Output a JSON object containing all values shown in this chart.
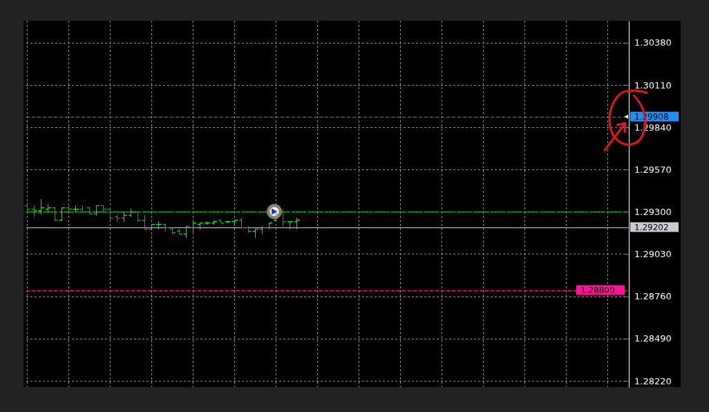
{
  "chart_data": {
    "type": "candlestick",
    "categories": [
      null,
      null,
      null,
      null,
      null,
      null,
      null,
      null,
      null,
      null,
      null,
      null,
      null,
      null,
      null,
      null,
      null,
      null,
      null,
      null,
      null,
      null,
      null,
      null,
      null,
      null,
      null,
      null,
      null,
      null,
      null,
      null,
      null,
      null,
      null,
      null,
      null,
      null,
      null,
      null,
      null,
      null,
      null,
      null,
      null,
      null,
      null,
      null,
      null,
      null,
      null,
      null,
      null,
      null,
      null,
      null,
      null,
      null,
      null,
      null,
      null,
      null,
      null,
      null,
      null,
      null,
      null,
      null,
      null,
      null,
      null,
      null,
      null,
      null,
      null,
      null,
      null,
      null,
      null,
      null,
      null,
      null,
      null,
      null,
      null,
      null,
      null,
      null
    ],
    "ohlc": [
      [
        1.2934,
        1.2936,
        1.293,
        1.2932
      ],
      [
        1.2932,
        1.2934,
        1.2927,
        1.2931
      ],
      [
        1.2931,
        1.2938,
        1.2929,
        1.2933
      ],
      [
        1.2932,
        1.2935,
        1.293,
        1.2933
      ],
      [
        1.2933,
        1.2933,
        1.2925,
        1.2925
      ],
      [
        1.2925,
        1.2933,
        1.2925,
        1.2933
      ],
      [
        1.2933,
        1.2935,
        1.293,
        1.2932
      ],
      [
        1.2932,
        1.2934,
        1.293,
        1.2932
      ],
      [
        1.2932,
        1.2934,
        1.293,
        1.293
      ],
      [
        1.2933,
        1.2933,
        1.2929,
        1.2929
      ],
      [
        1.2929,
        1.2934,
        1.2928,
        1.2934
      ],
      [
        1.2934,
        1.2934,
        1.293,
        1.2932
      ],
      [
        1.2932,
        1.2933,
        1.2925,
        1.2926
      ],
      [
        1.2927,
        1.2928,
        1.2924,
        1.2926
      ],
      [
        1.2926,
        1.293,
        1.2924,
        1.2928
      ],
      [
        1.2928,
        1.2932,
        1.2927,
        1.293
      ],
      [
        1.293,
        1.293,
        1.2924,
        1.2925
      ],
      [
        1.2925,
        1.2928,
        1.2919,
        1.2919
      ],
      [
        1.2919,
        1.2922,
        1.2919,
        1.2922
      ],
      [
        1.2922,
        1.2924,
        1.2919,
        1.2922
      ],
      [
        1.2922,
        1.2922,
        1.2918,
        1.292
      ],
      [
        1.2919,
        1.292,
        1.2916,
        1.2917
      ],
      [
        1.2918,
        1.2919,
        1.2916,
        1.2916
      ],
      [
        1.2916,
        1.2921,
        1.2914,
        1.2921
      ],
      [
        1.292,
        1.2924,
        1.2917,
        1.2923
      ],
      [
        1.2922,
        1.2923,
        1.2919,
        1.2923
      ],
      [
        1.2923,
        1.2924,
        1.2922,
        1.2923
      ],
      [
        1.2923,
        1.2925,
        1.2922,
        1.2924
      ],
      [
        1.2925,
        1.2925,
        1.2923,
        1.2923
      ],
      [
        1.2924,
        1.2924,
        1.2923,
        1.2924
      ],
      [
        1.2924,
        1.2925,
        1.2922,
        1.2925
      ],
      [
        1.2925,
        1.2926,
        1.292,
        1.292
      ],
      [
        1.292,
        1.2921,
        1.2917,
        1.2918
      ],
      [
        1.2918,
        1.2919,
        1.2914,
        1.2919
      ],
      [
        1.2919,
        1.2921,
        1.2916,
        1.292
      ],
      [
        1.292,
        1.2923,
        1.2919,
        1.2923
      ],
      [
        1.2925,
        1.293,
        1.2925,
        1.2929
      ],
      [
        1.293,
        1.2932,
        1.2921,
        1.2924
      ],
      [
        1.2924,
        1.2924,
        1.2919,
        1.2924
      ],
      [
        1.2924,
        1.2926,
        1.2919,
        1.2925
      ],
      null,
      null,
      null,
      null,
      null,
      null,
      null,
      null,
      null,
      null,
      null,
      null,
      null,
      null,
      null,
      null,
      null,
      null,
      null,
      null,
      null,
      null,
      null,
      null,
      null,
      null,
      null,
      null,
      null,
      null,
      null,
      null,
      null,
      null,
      null,
      null,
      null,
      null,
      null,
      null,
      null,
      null,
      null,
      null,
      null,
      null,
      null,
      null
    ],
    "colors": [
      "#00c000",
      "#00c000",
      "#00ff00",
      "#00ff00",
      "#00c000",
      "#00ff00",
      "#00c000",
      "#00ff00",
      "#00c000",
      "#00c000",
      "#00ff00",
      "#00c000",
      "#00c000",
      "#00c000",
      "#00ff00",
      "#00ff00",
      "#00c000",
      "#00c000",
      "#00ff00",
      "#00ff00",
      "#00c000",
      "#00c000",
      "#00c000",
      "#00ff00",
      "#00ff00",
      "#00ff00",
      "#00ff00",
      "#00ff00",
      "#00c000",
      "#00ff00",
      "#00ff00",
      "#00c000",
      "#00c000",
      "#00ff00",
      "#00ff00",
      "#00ff00",
      "#00ff00",
      "#00c000",
      "#00ff00",
      "#00ff00",
      null,
      null,
      null,
      null,
      null,
      null,
      null,
      null,
      null,
      null,
      null,
      null,
      null,
      null,
      null,
      null,
      null,
      null,
      null,
      null,
      null,
      null,
      null,
      null,
      null,
      null,
      null,
      null,
      null,
      null,
      null,
      null,
      null,
      null,
      null,
      null,
      null,
      null,
      null,
      null,
      null,
      null,
      null,
      null,
      null,
      null,
      null,
      null
    ],
    "ylim": [
      1.2818,
      1.3052
    ],
    "yticks": [
      {
        "value": 1.2822,
        "label": "1.28220"
      },
      {
        "value": 1.2849,
        "label": "1.28490"
      },
      {
        "value": 1.2876,
        "label": "1.28760"
      },
      {
        "value": 1.2903,
        "label": "1.29030"
      },
      {
        "value": 1.293,
        "label": "1.29300"
      },
      {
        "value": 1.2957,
        "label": "1.29570"
      },
      {
        "value": 1.2984,
        "label": "1.29840"
      },
      {
        "value": 1.3011,
        "label": "1.30110"
      },
      {
        "value": 1.3038,
        "label": "1.30380"
      }
    ],
    "grid": true,
    "ref_lines": [
      {
        "axis": "y",
        "value": 1.29908,
        "label": "1.29908",
        "color": "#1e90ff",
        "line_style": "dashed"
      },
      {
        "axis": "y",
        "value": 1.293,
        "label": null,
        "color": "#00c800",
        "line_style": "dashed"
      },
      {
        "axis": "y",
        "value": 1.29202,
        "label": "1.29202",
        "color": "#c8ccd4",
        "line_style": "solid"
      },
      {
        "axis": "y",
        "value": 1.288,
        "label": "1.28800",
        "color": "#ff1493",
        "line_style": "dashed"
      }
    ]
  }
}
